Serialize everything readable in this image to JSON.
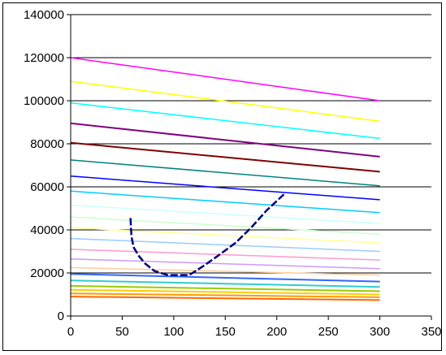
{
  "chart_data": {
    "type": "line",
    "title": "",
    "xlabel": "",
    "ylabel": "",
    "xlim": [
      0,
      350
    ],
    "ylim": [
      0,
      140000
    ],
    "x_ticks": [
      0,
      50,
      100,
      150,
      200,
      250,
      300,
      350
    ],
    "y_ticks": [
      0,
      20000,
      40000,
      60000,
      80000,
      100000,
      120000,
      140000
    ],
    "x_tick_labels": [
      "0",
      "50",
      "100",
      "150",
      "200",
      "250",
      "300",
      "350"
    ],
    "y_tick_labels": [
      "0",
      "20000",
      "40000",
      "60000",
      "80000",
      "100000",
      "120000",
      "140000"
    ],
    "grid": {
      "horizontal": true,
      "vertical": false
    },
    "legend": "none",
    "series": [
      {
        "color": "#ff00ff",
        "width": 1.5,
        "points": [
          [
            0,
            120000
          ],
          [
            300,
            100000
          ]
        ]
      },
      {
        "color": "#ffff00",
        "width": 1.5,
        "points": [
          [
            0,
            109000
          ],
          [
            300,
            90500
          ]
        ]
      },
      {
        "color": "#00ffff",
        "width": 1.5,
        "points": [
          [
            0,
            99000
          ],
          [
            300,
            82500
          ]
        ]
      },
      {
        "color": "#800080",
        "width": 2,
        "points": [
          [
            0,
            89500
          ],
          [
            300,
            74000
          ]
        ]
      },
      {
        "color": "#800000",
        "width": 2,
        "points": [
          [
            0,
            80500
          ],
          [
            300,
            67000
          ]
        ]
      },
      {
        "color": "#008080",
        "width": 1.5,
        "points": [
          [
            0,
            72500
          ],
          [
            300,
            60500
          ]
        ]
      },
      {
        "color": "#0000ff",
        "width": 1.5,
        "points": [
          [
            0,
            65000
          ],
          [
            300,
            54000
          ]
        ]
      },
      {
        "color": "#00ccff",
        "width": 1.5,
        "points": [
          [
            0,
            58000
          ],
          [
            300,
            48000
          ]
        ]
      },
      {
        "color": "#ccffff",
        "width": 1.5,
        "points": [
          [
            0,
            51500
          ],
          [
            300,
            43000
          ]
        ]
      },
      {
        "color": "#ccffcc",
        "width": 1.5,
        "points": [
          [
            0,
            46000
          ],
          [
            300,
            38000
          ]
        ]
      },
      {
        "color": "#ffff99",
        "width": 1.5,
        "points": [
          [
            0,
            41000
          ],
          [
            300,
            34000
          ]
        ]
      },
      {
        "color": "#99ccff",
        "width": 1.5,
        "points": [
          [
            0,
            36000
          ],
          [
            300,
            30000
          ]
        ]
      },
      {
        "color": "#ff99cc",
        "width": 1.5,
        "points": [
          [
            0,
            31000
          ],
          [
            300,
            26000
          ]
        ]
      },
      {
        "color": "#cc99ff",
        "width": 1.5,
        "points": [
          [
            0,
            26500
          ],
          [
            300,
            22000
          ]
        ]
      },
      {
        "color": "#ffcc99",
        "width": 1.5,
        "points": [
          [
            0,
            22500
          ],
          [
            300,
            19000
          ]
        ]
      },
      {
        "color": "#3366ff",
        "width": 2,
        "points": [
          [
            0,
            19500
          ],
          [
            300,
            16000
          ]
        ]
      },
      {
        "color": "#33cccc",
        "width": 2,
        "points": [
          [
            0,
            16500
          ],
          [
            300,
            13500
          ]
        ]
      },
      {
        "color": "#99cc00",
        "width": 2,
        "points": [
          [
            0,
            14000
          ],
          [
            300,
            11500
          ]
        ]
      },
      {
        "color": "#ffcc00",
        "width": 2,
        "points": [
          [
            0,
            12200
          ],
          [
            300,
            10000
          ]
        ]
      },
      {
        "color": "#ff9900",
        "width": 2,
        "points": [
          [
            0,
            10500
          ],
          [
            300,
            8700
          ]
        ]
      },
      {
        "color": "#ff6600",
        "width": 2,
        "points": [
          [
            0,
            9000
          ],
          [
            300,
            7400
          ]
        ]
      },
      {
        "color": "#000080",
        "width": 2.5,
        "dashed": true,
        "points": [
          [
            58,
            45500
          ],
          [
            59,
            37000
          ],
          [
            61,
            32000
          ],
          [
            66,
            28000
          ],
          [
            72,
            24500
          ],
          [
            81,
            21000
          ],
          [
            94,
            19000
          ],
          [
            105,
            19000
          ],
          [
            115,
            19000
          ],
          [
            128,
            23000
          ],
          [
            143,
            28000
          ],
          [
            160,
            34000
          ],
          [
            175,
            41000
          ],
          [
            190,
            49000
          ],
          [
            208,
            57000
          ]
        ]
      }
    ]
  }
}
